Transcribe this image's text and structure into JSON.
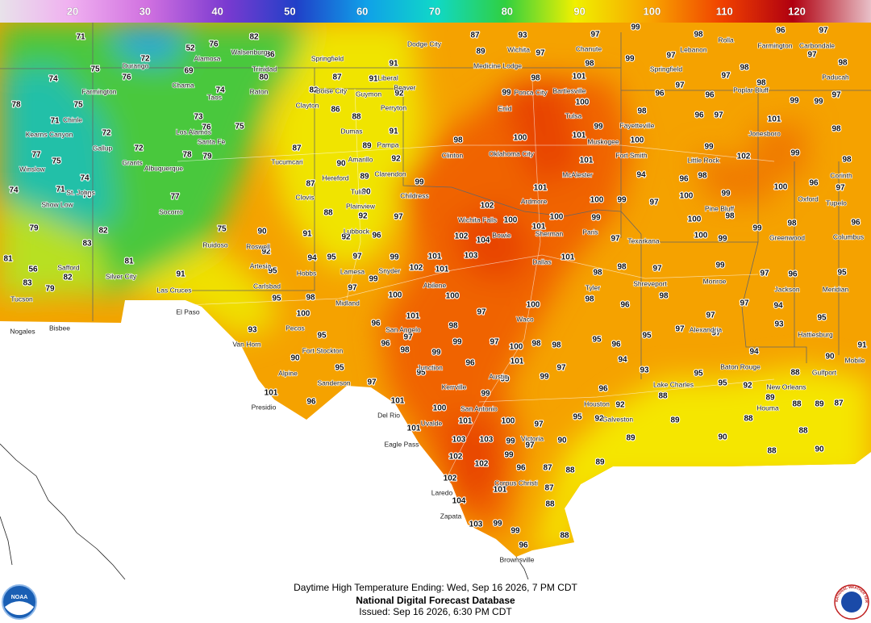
{
  "legend": {
    "ticks": [
      20,
      30,
      40,
      50,
      60,
      70,
      80,
      90,
      100,
      110,
      120
    ]
  },
  "temperatures": [
    71,
    52,
    76,
    82,
    72,
    86,
    75,
    69,
    80,
    74,
    76,
    74,
    78,
    75,
    71,
    73,
    76,
    75,
    72,
    72,
    78,
    79,
    77,
    75,
    74,
    71,
    70,
    74,
    77,
    79,
    82,
    83,
    81,
    81,
    56,
    82,
    83,
    79,
    91,
    75,
    90,
    91,
    92,
    94,
    95,
    95,
    97,
    92,
    96,
    97,
    88,
    92,
    90,
    89,
    90,
    87,
    87,
    89,
    92,
    91,
    88,
    86,
    82,
    87,
    91,
    92,
    91,
    87,
    93,
    97,
    89,
    97,
    98,
    101,
    98,
    99,
    100,
    99,
    101,
    100,
    98,
    99,
    101,
    101,
    102,
    100,
    102,
    104,
    103,
    101,
    99,
    102,
    101,
    100,
    99,
    100,
    99,
    101,
    101,
    97,
    98,
    98,
    97,
    99,
    100,
    98,
    95,
    100,
    93,
    95,
    90,
    95,
    96,
    101,
    100,
    97,
    98,
    97,
    96,
    98,
    99,
    99,
    97,
    100,
    101,
    96,
    95,
    97,
    101,
    96,
    101,
    100,
    99,
    99,
    99,
    97,
    98,
    95,
    96,
    98,
    96,
    100,
    98,
    96,
    92,
    95,
    92,
    88,
    89,
    89,
    90,
    88,
    90,
    88,
    88,
    89,
    101,
    101,
    100,
    97,
    103,
    103,
    99,
    97,
    90,
    102,
    102,
    99,
    96,
    87,
    88,
    102,
    101,
    87,
    88,
    104,
    103,
    99,
    99,
    96,
    88,
    99,
    98,
    96,
    97,
    97,
    98,
    99,
    97,
    97,
    98,
    98,
    97,
    96,
    96,
    99,
    99,
    97,
    101,
    98,
    96,
    97,
    100,
    98,
    99,
    102,
    99,
    98,
    94,
    96,
    98,
    100,
    99,
    97,
    100,
    96,
    97,
    100,
    98,
    99,
    98,
    96,
    100,
    99,
    97,
    99,
    97,
    96,
    95,
    98,
    97,
    94,
    97,
    93,
    95,
    97,
    97,
    95,
    94,
    90,
    88,
    91,
    93,
    95,
    92,
    89,
    88,
    89,
    87,
    95,
    94
  ],
  "cities": [
    "Dodge City",
    "Wichita",
    "Springfield",
    "Medicine Lodge",
    "Chanute",
    "Springfield",
    "Liberal",
    "Beaver",
    "Guymon",
    "Boise City",
    "Clayton",
    "Ponca City",
    "Bartlesville",
    "Tulsa",
    "Enid",
    "Perryton",
    "Dumas",
    "Pampa",
    "Amarillo",
    "Clinton",
    "Oklahoma City",
    "Tucumcari",
    "Hereford",
    "Clarendon",
    "Tulia",
    "Plainview",
    "Clovis",
    "Lubbock",
    "Childress",
    "Wichita Falls",
    "Bowie",
    "Sherman",
    "Paris",
    "Fort Smith",
    "Fayetteville",
    "Muskogee",
    "McAlester",
    "Ardmore",
    "Roswell",
    "Artesia",
    "Carlsbad",
    "Hobbs",
    "Lamesa",
    "Snyder",
    "Abilene",
    "Midland",
    "Pecos",
    "Fort Stockton",
    "Alpine",
    "Sanderson",
    "Van Horn",
    "El Paso",
    "Las Cruces",
    "San Angelo",
    "Junction",
    "Kerrville",
    "San Antonio",
    "Austin",
    "Waco",
    "Dallas",
    "Tyler",
    "Houston",
    "Galveston",
    "Victoria",
    "Laredo",
    "Zapata",
    "Brownsville",
    "Corpus Christi",
    "Del Rio",
    "Eagle Pass",
    "Presidio",
    "Uvalde",
    "Albuquerque",
    "Santa Fe",
    "Los Alamos",
    "Farmington",
    "Gallup",
    "Grants",
    "Socorro",
    "Ruidoso",
    "Silver City",
    "Shreveport",
    "Texarkana",
    "Lake Charles",
    "Baton Rouge",
    "New Orleans",
    "Jackson",
    "Little Rock",
    "Pine Bluff",
    "Monroe",
    "Alexandria",
    "Hattiesburg",
    "Greenwood",
    "Jonesboro",
    "Poplar Bluff",
    "Paducah",
    "Carbondale",
    "Lebanon",
    "Rolla",
    "Farmington",
    "Corinth",
    "Tupelo",
    "Columbus",
    "Meridian",
    "Oxford",
    "Mobile",
    "Gulfport",
    "Houma",
    "Nogales",
    "Bisbee",
    "Tucson",
    "Safford",
    "Show Low",
    "St. Johns",
    "Winslow",
    "Kearns Canyon",
    "Chinle",
    "Trinidad",
    "Walsenburg",
    "Raton",
    "Alamosa",
    "Durango",
    "Chama",
    "Taos"
  ],
  "footer": {
    "line1": "Daytime High Temperature Ending: Wed, Sep 16 2026, 7 PM CDT",
    "line2": "National Digital Forecast Database",
    "line3": "Issued: Sep 16 2026, 6:30 PM CDT"
  },
  "logos": {
    "noaa": "NOAA",
    "nws": "NATIONAL WEATHER SERVICE"
  }
}
